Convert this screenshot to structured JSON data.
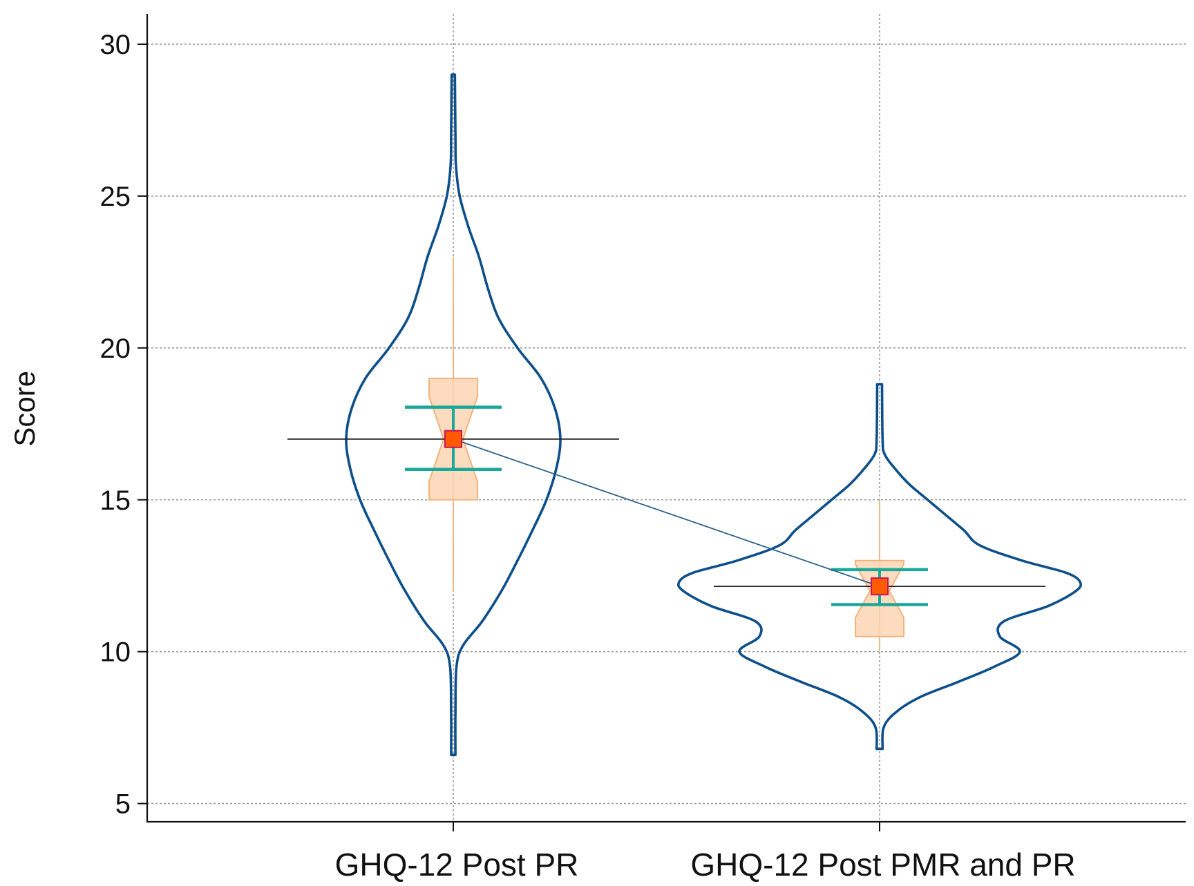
{
  "chart_data": {
    "type": "violin",
    "title": "",
    "xlabel": "",
    "ylabel": "Score",
    "ylim": [
      4.4,
      31.0
    ],
    "yticks": [
      5,
      10,
      15,
      20,
      25,
      30
    ],
    "grid": true,
    "categories": [
      "GHQ-12 Post PR",
      "GHQ-12 Post PMR and PR"
    ],
    "series": [
      {
        "name": "GHQ-12 Post PR",
        "mean": 17.0,
        "ci_low": 16.0,
        "ci_high": 18.05,
        "median": 17.0,
        "q1": 15.0,
        "q3": 19.0,
        "whisker_low": 12.0,
        "whisker_high": 23.0,
        "min": 6.6,
        "max": 29.0,
        "density_profile": [
          [
            6.6,
            0.02
          ],
          [
            8.0,
            0.02
          ],
          [
            9.5,
            0.03
          ],
          [
            10.2,
            0.09
          ],
          [
            11.0,
            0.27
          ],
          [
            12.0,
            0.45
          ],
          [
            13.0,
            0.6
          ],
          [
            14.0,
            0.74
          ],
          [
            15.0,
            0.87
          ],
          [
            16.0,
            0.96
          ],
          [
            17.0,
            1.0
          ],
          [
            18.0,
            0.95
          ],
          [
            19.0,
            0.82
          ],
          [
            20.0,
            0.6
          ],
          [
            21.0,
            0.42
          ],
          [
            22.0,
            0.32
          ],
          [
            23.0,
            0.24
          ],
          [
            24.0,
            0.14
          ],
          [
            25.0,
            0.06
          ],
          [
            26.0,
            0.025
          ],
          [
            27.0,
            0.02
          ],
          [
            29.0,
            0.015
          ]
        ]
      },
      {
        "name": "GHQ-12 Post PMR and PR",
        "mean": 12.15,
        "ci_low": 11.55,
        "ci_high": 12.7,
        "median": 12.0,
        "q1": 10.5,
        "q3": 13.0,
        "whisker_low": 10.0,
        "whisker_high": 15.0,
        "min": 6.8,
        "max": 18.8,
        "density_profile": [
          [
            6.8,
            0.015
          ],
          [
            7.5,
            0.02
          ],
          [
            8.0,
            0.08
          ],
          [
            8.5,
            0.2
          ],
          [
            9.0,
            0.39
          ],
          [
            9.5,
            0.57
          ],
          [
            10.0,
            0.7
          ],
          [
            10.5,
            0.6
          ],
          [
            11.0,
            0.62
          ],
          [
            11.5,
            0.84
          ],
          [
            12.0,
            0.98
          ],
          [
            12.3,
            1.0
          ],
          [
            12.6,
            0.93
          ],
          [
            13.0,
            0.71
          ],
          [
            13.5,
            0.5
          ],
          [
            14.0,
            0.42
          ],
          [
            14.5,
            0.33
          ],
          [
            15.0,
            0.24
          ],
          [
            15.5,
            0.15
          ],
          [
            16.0,
            0.08
          ],
          [
            16.5,
            0.025
          ],
          [
            17.0,
            0.015
          ],
          [
            18.8,
            0.012
          ]
        ]
      }
    ],
    "colors": {
      "violin": "#0d4f8a",
      "box_fill": "#fcd5b3",
      "box_stroke": "#f2b27c",
      "whisker": "#f2b27c",
      "ci": "#1aa89a",
      "mean_fill": "#ff5a00",
      "mean_stroke": "#c2185b",
      "mean_line": "#222222",
      "connector": "#2b5f8a"
    }
  }
}
